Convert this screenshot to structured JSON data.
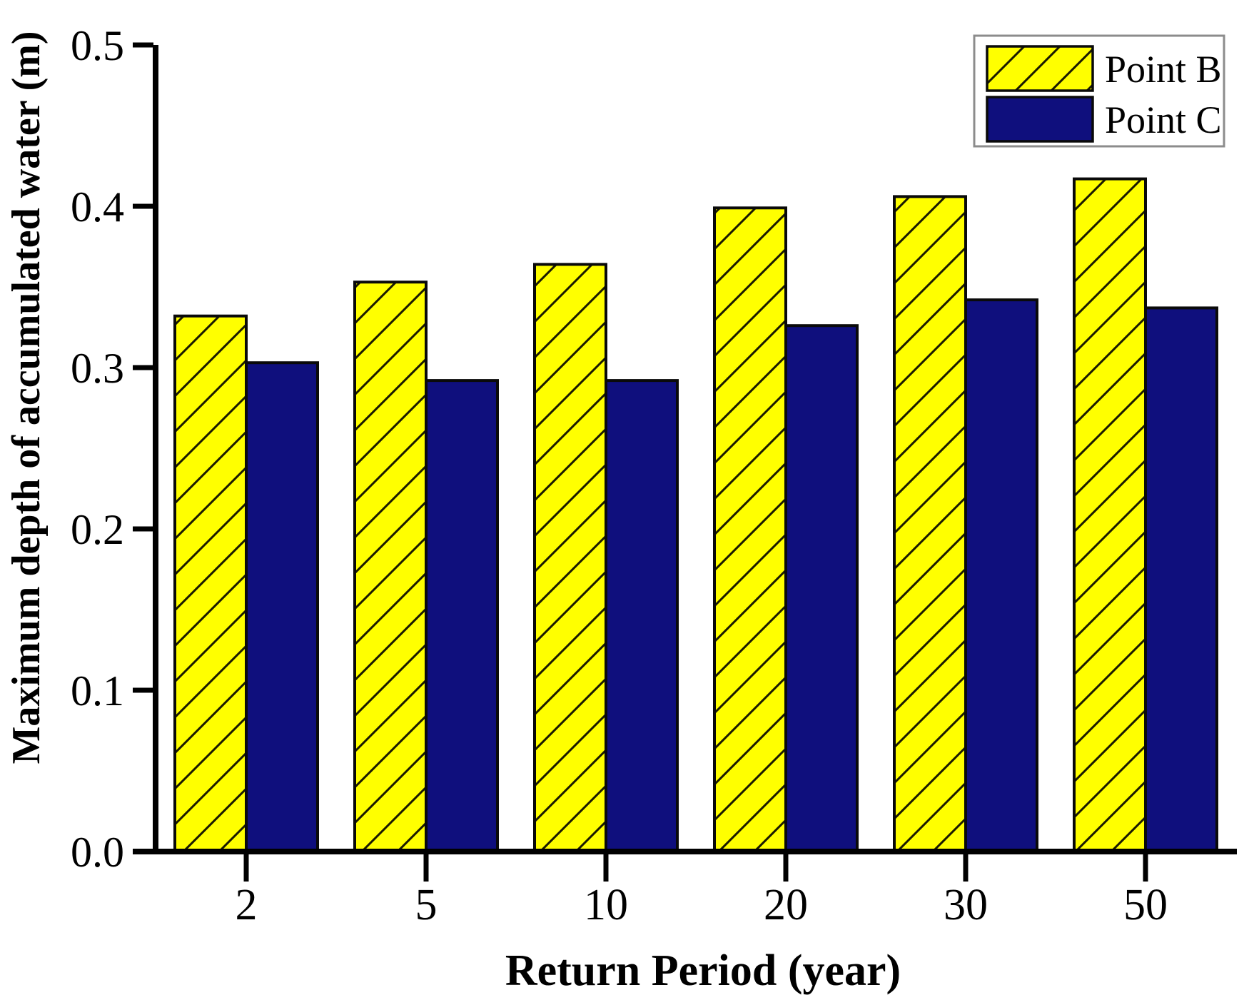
{
  "figure": {
    "background": "#FFFFFF"
  },
  "chart_data": {
    "type": "bar",
    "title": "",
    "xlabel": "Return Period (year)",
    "ylabel": "Maximum depth of accumulated water (m)",
    "categories": [
      "2",
      "5",
      "10",
      "20",
      "30",
      "50"
    ],
    "series": [
      {
        "name": "Point B",
        "color": "#FFFF00",
        "hatch": "diagonal-forward",
        "border": "#0A0A0A",
        "values": [
          0.332,
          0.353,
          0.364,
          0.399,
          0.406,
          0.417
        ]
      },
      {
        "name": "Point C",
        "color": "#0F0F7D",
        "hatch": "none",
        "border": "#0A0A0A",
        "values": [
          0.303,
          0.292,
          0.292,
          0.326,
          0.342,
          0.337
        ]
      }
    ],
    "ylim": [
      0.0,
      0.5
    ],
    "ytick_labels": [
      "0.0",
      "0.1",
      "0.2",
      "0.3",
      "0.4",
      "0.5"
    ],
    "ytick_values": [
      0.0,
      0.1,
      0.2,
      0.3,
      0.4,
      0.5
    ],
    "grid": false,
    "legend_position": "top-right"
  },
  "colors": {
    "axis": "#000000",
    "hatch_line": "#1A1A00",
    "legend_border": "#8C8C8C",
    "legend_background": "#FFFFFF"
  }
}
